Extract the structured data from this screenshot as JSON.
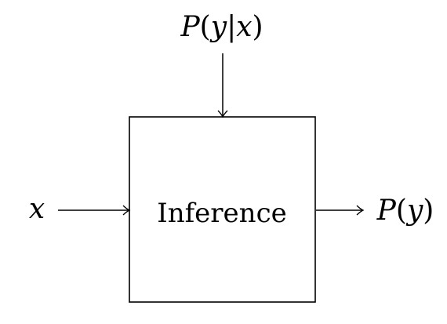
{
  "diagram": {
    "top_input": {
      "prefix": "P",
      "open": "(",
      "var1": "y",
      "bar": "|",
      "var2": "x",
      "close": ")"
    },
    "left_input": {
      "var": "x"
    },
    "block": {
      "label": "Inference"
    },
    "output": {
      "prefix": "P",
      "open": "(",
      "var": "y",
      "close": ")"
    },
    "colors": {
      "stroke": "#000000",
      "background": "#ffffff"
    }
  }
}
